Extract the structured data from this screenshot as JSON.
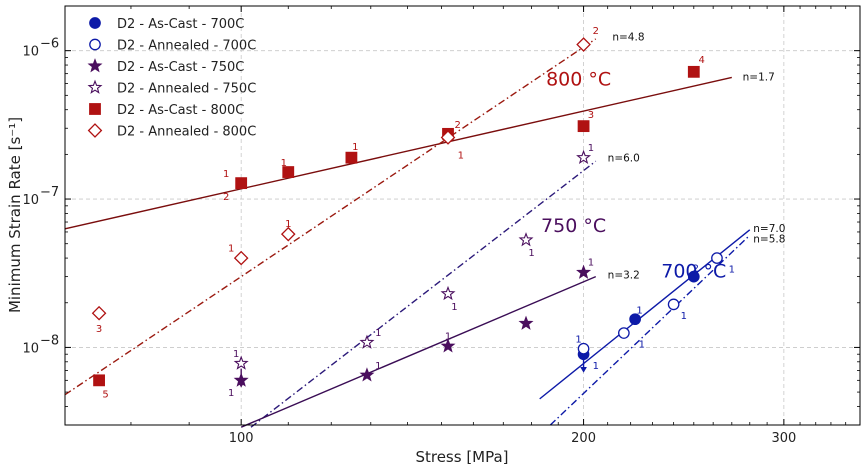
{
  "chart_data": {
    "type": "scatter",
    "title": "",
    "xlabel": "Stress [MPa]",
    "ylabel": "Minimum Strain Rate [s⁻¹]",
    "xscale": "log",
    "yscale": "log",
    "xlim": [
      70,
      350
    ],
    "ylim": [
      3e-09,
      2e-06
    ],
    "x_ticks": [
      {
        "value": 100,
        "label": "100"
      },
      {
        "value": 200,
        "label": "200"
      },
      {
        "value": 300,
        "label": "300"
      }
    ],
    "y_ticks": [
      {
        "value": 1e-08,
        "mant": "10",
        "exp": "−8"
      },
      {
        "value": 1e-07,
        "mant": "10",
        "exp": "−7"
      },
      {
        "value": 1e-06,
        "mant": "10",
        "exp": "−6"
      }
    ],
    "legend_position": "top-left",
    "series": [
      {
        "name": "D2 - As-Cast - 700C",
        "marker": "circle",
        "filled": true,
        "color": "#0d1aa8",
        "points": [
          {
            "x": 200,
            "y": 9e-09
          },
          {
            "x": 222,
            "y": 1.55e-08
          },
          {
            "x": 250,
            "y": 3e-08
          }
        ]
      },
      {
        "name": "D2 - Annealed - 700C",
        "marker": "circle",
        "filled": false,
        "color": "#0d1aa8",
        "points": [
          {
            "x": 200,
            "y": 9.8e-09
          },
          {
            "x": 217,
            "y": 1.25e-08
          },
          {
            "x": 240,
            "y": 1.95e-08
          },
          {
            "x": 262,
            "y": 4e-08
          }
        ]
      },
      {
        "name": "D2 - As-Cast - 750C",
        "marker": "star",
        "filled": true,
        "color": "#4b0f5e",
        "points": [
          {
            "x": 100,
            "y": 6e-09
          },
          {
            "x": 129,
            "y": 6.5e-09
          },
          {
            "x": 152,
            "y": 1.02e-08
          },
          {
            "x": 178,
            "y": 1.45e-08
          },
          {
            "x": 200,
            "y": 3.2e-08
          }
        ]
      },
      {
        "name": "D2 - Annealed - 750C",
        "marker": "star",
        "filled": false,
        "color": "#4b0f5e",
        "points": [
          {
            "x": 100,
            "y": 7.8e-09
          },
          {
            "x": 129,
            "y": 1.08e-08
          },
          {
            "x": 152,
            "y": 2.3e-08
          },
          {
            "x": 178,
            "y": 5.3e-08
          },
          {
            "x": 200,
            "y": 1.9e-07
          }
        ]
      },
      {
        "name": "D2 - As-Cast - 800C",
        "marker": "square",
        "filled": true,
        "color": "#b01212",
        "points": [
          {
            "x": 75,
            "y": 6e-09
          },
          {
            "x": 100,
            "y": 1.28e-07
          },
          {
            "x": 110,
            "y": 1.52e-07
          },
          {
            "x": 125,
            "y": 1.9e-07
          },
          {
            "x": 152,
            "y": 2.75e-07
          },
          {
            "x": 200,
            "y": 3.1e-07
          },
          {
            "x": 250,
            "y": 7.2e-07
          }
        ]
      },
      {
        "name": "D2 - Annealed - 800C",
        "marker": "diamond",
        "filled": false,
        "color": "#b01212",
        "points": [
          {
            "x": 75,
            "y": 1.7e-08
          },
          {
            "x": 100,
            "y": 4e-08
          },
          {
            "x": 110,
            "y": 5.8e-08
          },
          {
            "x": 152,
            "y": 2.6e-07
          },
          {
            "x": 200,
            "y": 1.1e-06
          }
        ]
      }
    ],
    "fit_lines": [
      {
        "color": "#7a0d0d",
        "dash": "solid",
        "x0": 70,
        "y0": 6.3e-08,
        "x1": 270,
        "y1": 6.6e-07
      },
      {
        "color": "#9b1a10",
        "dash": "dashdot",
        "x0": 70,
        "y0": 4.8e-09,
        "x1": 205,
        "y1": 1.2e-06
      },
      {
        "color": "#2c1a7a",
        "dash": "dashdot",
        "x0": 102,
        "y0": 2.9e-09,
        "x1": 205,
        "y1": 1.8e-07
      },
      {
        "color": "#3a0d55",
        "dash": "solid",
        "x0": 100,
        "y0": 2.9e-09,
        "x1": 205,
        "y1": 3e-08
      },
      {
        "color": "#0d1aa8",
        "dash": "solid",
        "x0": 183,
        "y0": 4.5e-09,
        "x1": 280,
        "y1": 6.2e-08
      },
      {
        "color": "#0d1aa8",
        "dash": "dashdot",
        "x0": 187,
        "y0": 3e-09,
        "x1": 280,
        "y1": 5.7e-08
      }
    ],
    "n_labels": [
      {
        "text": "n=4.8",
        "x": 212,
        "y": 1.25e-06
      },
      {
        "text": "n=1.7",
        "x": 276,
        "y": 6.7e-07
      },
      {
        "text": "n=6.0",
        "x": 210,
        "y": 1.9e-07
      },
      {
        "text": "n=3.2",
        "x": 210,
        "y": 3.1e-08
      },
      {
        "text": "n=7.0",
        "x": 282,
        "y": 6.4e-08
      },
      {
        "text": "n=5.8",
        "x": 282,
        "y": 5.4e-08
      }
    ],
    "temperature_labels": [
      {
        "text": "800 °C",
        "x": 198,
        "y": 6.5e-07,
        "color": "#b01212"
      },
      {
        "text": "750 °C",
        "x": 196,
        "y": 6.7e-08,
        "color": "#4b0f5e"
      },
      {
        "text": "700 °C",
        "x": 250,
        "y": 3.3e-08,
        "color": "#0d1aa8"
      }
    ],
    "point_labels": [
      {
        "text": "2",
        "x": 205,
        "y": 1.38e-06,
        "color": "#b01212"
      },
      {
        "text": "4",
        "x": 254,
        "y": 8.8e-07,
        "color": "#b01212"
      },
      {
        "text": "2",
        "x": 155,
        "y": 3.2e-07,
        "color": "#b01212"
      },
      {
        "text": "1",
        "x": 156,
        "y": 2e-07,
        "color": "#b01212"
      },
      {
        "text": "3",
        "x": 203,
        "y": 3.75e-07,
        "color": "#b01212"
      },
      {
        "text": "1",
        "x": 97,
        "y": 1.5e-07,
        "color": "#b01212"
      },
      {
        "text": "2",
        "x": 97,
        "y": 1.05e-07,
        "color": "#b01212"
      },
      {
        "text": "1",
        "x": 109,
        "y": 1.78e-07,
        "color": "#b01212"
      },
      {
        "text": "1",
        "x": 126,
        "y": 2.28e-07,
        "color": "#b01212"
      },
      {
        "text": "1",
        "x": 110,
        "y": 6.9e-08,
        "color": "#b01212"
      },
      {
        "text": "1",
        "x": 98,
        "y": 4.7e-08,
        "color": "#b01212"
      },
      {
        "text": "3",
        "x": 75,
        "y": 1.35e-08,
        "color": "#b01212"
      },
      {
        "text": "5",
        "x": 76,
        "y": 4.9e-09,
        "color": "#b01212"
      },
      {
        "text": "1",
        "x": 203,
        "y": 2.25e-07,
        "color": "#4b0f5e"
      },
      {
        "text": "1",
        "x": 180,
        "y": 4.4e-08,
        "color": "#4b0f5e"
      },
      {
        "text": "1",
        "x": 154,
        "y": 1.9e-08,
        "color": "#4b0f5e"
      },
      {
        "text": "1",
        "x": 132,
        "y": 1.27e-08,
        "color": "#4b0f5e"
      },
      {
        "text": "1",
        "x": 132,
        "y": 7.6e-09,
        "color": "#4b0f5e"
      },
      {
        "text": "1",
        "x": 152,
        "y": 1.2e-08,
        "color": "#4b0f5e"
      },
      {
        "text": "1",
        "x": 203,
        "y": 3.8e-08,
        "color": "#4b0f5e"
      },
      {
        "text": "1",
        "x": 99,
        "y": 9.2e-09,
        "color": "#4b0f5e"
      },
      {
        "text": "1",
        "x": 98,
        "y": 5e-09,
        "color": "#4b0f5e"
      },
      {
        "text": "1",
        "x": 198,
        "y": 1.15e-08,
        "color": "#0d1aa8"
      },
      {
        "text": "1",
        "x": 205,
        "y": 7.6e-09,
        "color": "#0d1aa8"
      },
      {
        "text": "1",
        "x": 224,
        "y": 1.8e-08,
        "color": "#0d1aa8"
      },
      {
        "text": "1",
        "x": 225,
        "y": 1.06e-08,
        "color": "#0d1aa8"
      },
      {
        "text": "1",
        "x": 245,
        "y": 1.65e-08,
        "color": "#0d1aa8"
      },
      {
        "text": "2",
        "x": 251,
        "y": 3.45e-08,
        "color": "#0d1aa8"
      },
      {
        "text": "1",
        "x": 270,
        "y": 3.4e-08,
        "color": "#0d1aa8"
      }
    ],
    "arrows": [
      {
        "x": 200,
        "y_from": 9e-09,
        "y_to": 6.8e-09,
        "color": "#0d1aa8"
      },
      {
        "x": 100,
        "y_from": 7.2e-09,
        "y_to": 5.4e-09,
        "color": "#4b0f5e"
      }
    ]
  }
}
